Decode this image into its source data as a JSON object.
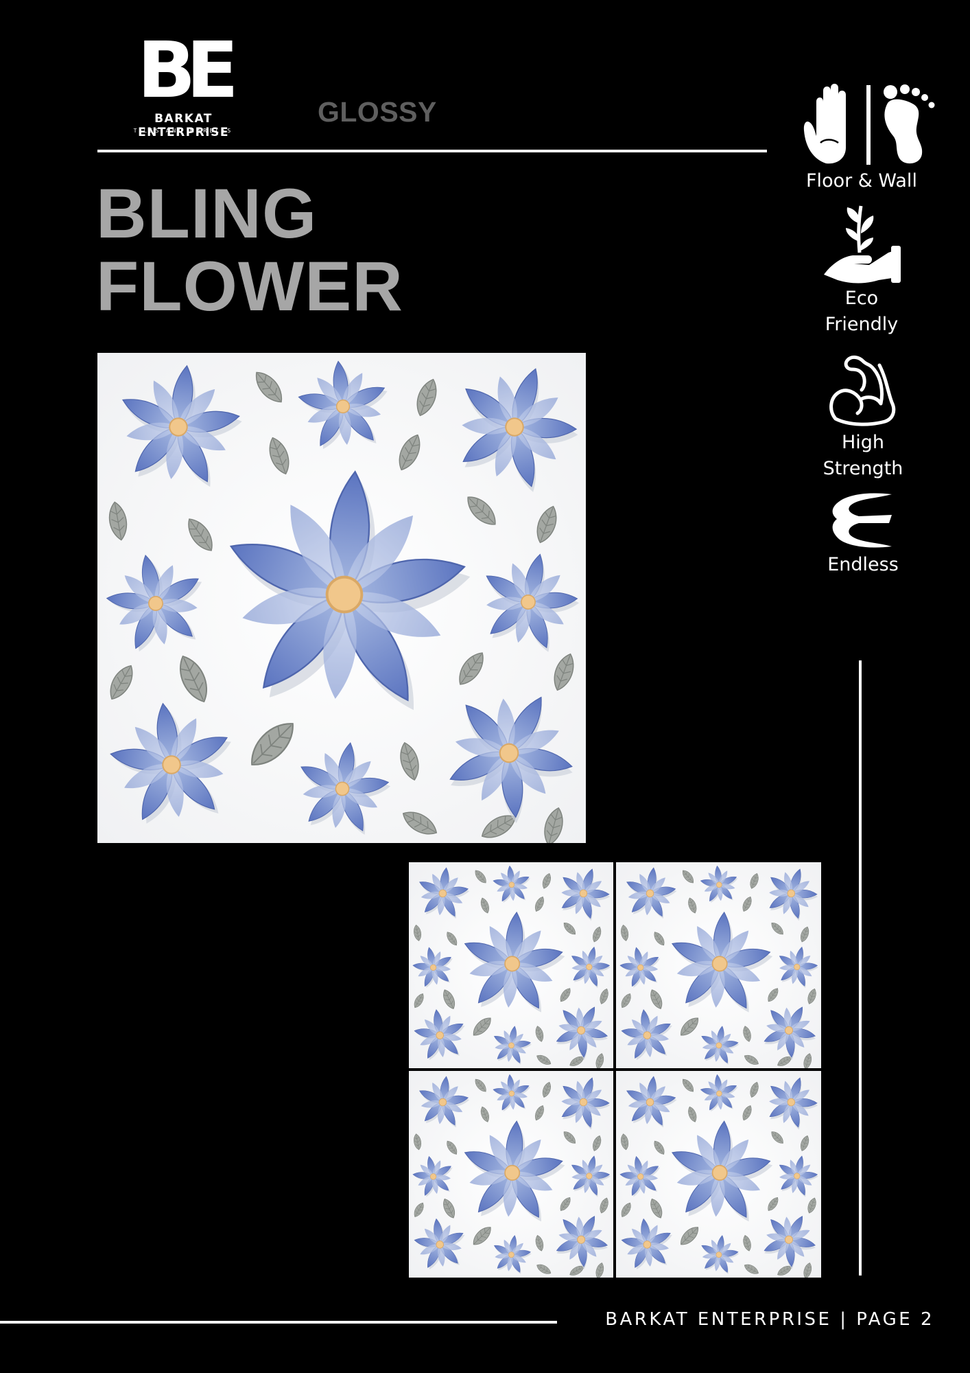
{
  "brand": {
    "logo_mark": "BE.",
    "company_name": "BARKAT ENTERPRISE",
    "tagline": "TILES AND MARBLES"
  },
  "product": {
    "finish": "GLOSSY",
    "title_line1": "BLING",
    "title_line2": "FLOWER"
  },
  "features": [
    {
      "icon": "hand-foot-icon",
      "label": "Floor & Wall"
    },
    {
      "icon": "hand-plant-icon",
      "label_line1": "Eco",
      "label_line2": "Friendly"
    },
    {
      "icon": "flexed-arm-icon",
      "label_line1": "High",
      "label_line2": "Strength"
    },
    {
      "icon": "endless-icon",
      "label": "Endless"
    }
  ],
  "footer": {
    "text": "BARKAT ENTERPRISE | PAGE 2"
  },
  "colors": {
    "background": "#000000",
    "title_gray": "#a6a6a6",
    "finish_gray": "#5f5f5f",
    "petal_blue": "#6f86c8",
    "petal_light": "#b2c2e4",
    "leaf_gray": "#9fa39f",
    "flower_center": "#f1c78b"
  }
}
